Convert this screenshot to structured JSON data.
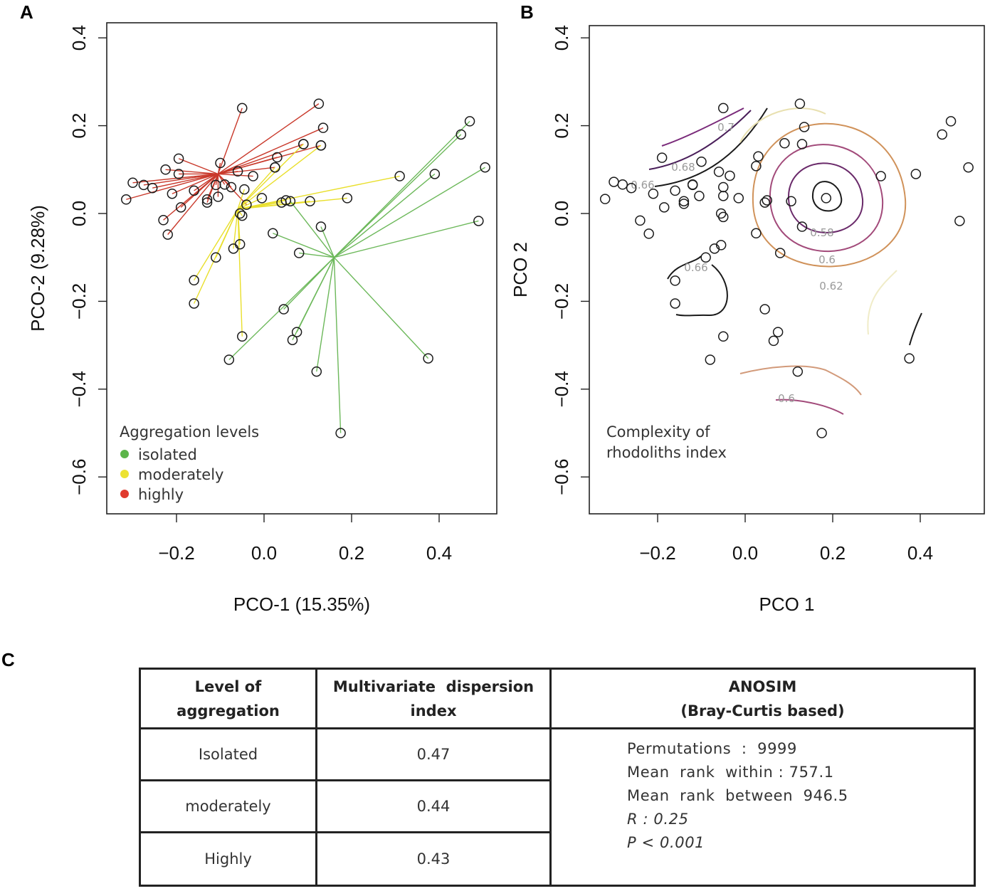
{
  "chart_data": [
    {
      "panel": "A",
      "type": "scatter",
      "xlabel": "PCO-1 (15.35%)",
      "ylabel": "PCO-2 (9.28%)",
      "xlim": [
        -0.35,
        0.53
      ],
      "ylim": [
        -0.68,
        0.43
      ],
      "xticks": [
        "-0.2",
        "0.0",
        "0.2",
        "0.4"
      ],
      "yticks": [
        "-0.6",
        "-0.4",
        "-0.2",
        "0.0",
        "0.2",
        "0.4"
      ],
      "legend": {
        "title": "Aggregation levels",
        "position": "bottom-left",
        "entries": [
          {
            "label": "isolated",
            "color": "#5cb54a"
          },
          {
            "label": "moderately",
            "color": "#ece232"
          },
          {
            "label": "highly",
            "color": "#e03a2e"
          }
        ]
      },
      "groups": [
        {
          "name": "highly",
          "color": "#c9392b",
          "centroid": [
            -0.105,
            0.09
          ],
          "points": [
            [
              -0.05,
              0.24
            ],
            [
              0.125,
              0.25
            ],
            [
              0.135,
              0.195
            ],
            [
              0.13,
              0.155
            ],
            [
              0.09,
              0.158
            ],
            [
              0.03,
              0.128
            ],
            [
              0.025,
              0.105
            ],
            [
              -0.1,
              0.115
            ],
            [
              -0.195,
              0.125
            ],
            [
              -0.225,
              0.1
            ],
            [
              -0.195,
              0.09
            ],
            [
              -0.315,
              0.032
            ],
            [
              -0.3,
              0.07
            ],
            [
              -0.275,
              0.065
            ],
            [
              -0.255,
              0.058
            ],
            [
              -0.23,
              -0.015
            ],
            [
              -0.19,
              0.014
            ],
            [
              -0.22,
              -0.048
            ],
            [
              -0.21,
              0.045
            ],
            [
              -0.16,
              0.052
            ],
            [
              -0.13,
              0.025
            ],
            [
              -0.13,
              0.032
            ],
            [
              -0.06,
              0.096
            ],
            [
              -0.025,
              0.085
            ],
            [
              -0.04,
              0.02
            ],
            [
              -0.11,
              0.065
            ],
            [
              -0.105,
              0.038
            ],
            [
              -0.09,
              0.066
            ],
            [
              -0.075,
              0.06
            ]
          ]
        },
        {
          "name": "moderately",
          "color": "#e9df2c",
          "centroid": [
            -0.06,
            0.01
          ],
          "points": [
            [
              0.31,
              0.085
            ],
            [
              0.19,
              0.035
            ],
            [
              0.105,
              0.028
            ],
            [
              0.05,
              0.03
            ],
            [
              0.04,
              0.025
            ],
            [
              0.025,
              0.105
            ],
            [
              -0.005,
              0.035
            ],
            [
              -0.045,
              0.055
            ],
            [
              -0.055,
              0.0
            ],
            [
              -0.05,
              -0.005
            ],
            [
              -0.07,
              -0.08
            ],
            [
              -0.055,
              -0.07
            ],
            [
              -0.11,
              -0.1
            ],
            [
              -0.16,
              -0.152
            ],
            [
              -0.16,
              -0.205
            ],
            [
              -0.05,
              -0.28
            ],
            [
              0.13,
              0.155
            ],
            [
              0.09,
              0.158
            ]
          ]
        },
        {
          "name": "isolated",
          "color": "#6cb85a",
          "centroid": [
            0.16,
            -0.1
          ],
          "points": [
            [
              0.47,
              0.21
            ],
            [
              0.45,
              0.18
            ],
            [
              0.505,
              0.105
            ],
            [
              0.39,
              0.09
            ],
            [
              0.49,
              -0.017
            ],
            [
              0.375,
              -0.33
            ],
            [
              0.175,
              -0.5
            ],
            [
              0.12,
              -0.36
            ],
            [
              0.075,
              -0.27
            ],
            [
              0.065,
              -0.288
            ],
            [
              0.045,
              -0.218
            ],
            [
              -0.08,
              -0.333
            ],
            [
              0.08,
              -0.09
            ],
            [
              0.13,
              -0.03
            ],
            [
              0.02,
              -0.045
            ],
            [
              0.06,
              0.028
            ]
          ]
        }
      ]
    },
    {
      "panel": "B",
      "type": "scatter",
      "xlabel": "PCO 1",
      "ylabel": "PCO 2",
      "xlim": [
        -0.35,
        0.53
      ],
      "ylim": [
        -0.68,
        0.43
      ],
      "xticks": [
        "-0.2",
        "0.0",
        "0.2",
        "0.4"
      ],
      "yticks": [
        "-0.6",
        "-0.4",
        "-0.2",
        "0.0",
        "0.2",
        "0.4"
      ],
      "annotation": [
        "Complexity of",
        "rhodoliths index"
      ],
      "contour_levels": [
        "0.7",
        "0.68",
        "0.66",
        "0.58",
        "0.6",
        "0.62",
        "0.66",
        "0.6"
      ],
      "points": [
        [
          -0.32,
          0.033
        ],
        [
          -0.3,
          0.072
        ],
        [
          -0.28,
          0.066
        ],
        [
          -0.26,
          0.058
        ],
        [
          -0.24,
          -0.016
        ],
        [
          -0.22,
          -0.046
        ],
        [
          -0.21,
          0.045
        ],
        [
          -0.19,
          0.127
        ],
        [
          -0.185,
          0.014
        ],
        [
          -0.16,
          0.052
        ],
        [
          -0.14,
          0.028
        ],
        [
          -0.14,
          0.022
        ],
        [
          -0.12,
          0.065
        ],
        [
          -0.105,
          0.04
        ],
        [
          -0.1,
          0.118
        ],
        [
          -0.09,
          -0.1
        ],
        [
          -0.05,
          0.24
        ],
        [
          -0.06,
          0.095
        ],
        [
          -0.05,
          0.06
        ],
        [
          -0.05,
          0.04
        ],
        [
          -0.055,
          0.0
        ],
        [
          -0.05,
          -0.008
        ],
        [
          -0.07,
          -0.08
        ],
        [
          -0.055,
          -0.072
        ],
        [
          -0.015,
          0.035
        ],
        [
          -0.035,
          0.086
        ],
        [
          -0.12,
          0.066
        ],
        [
          0.025,
          0.108
        ],
        [
          0.025,
          -0.045
        ],
        [
          0.03,
          0.13
        ],
        [
          0.045,
          0.025
        ],
        [
          0.05,
          0.03
        ],
        [
          0.09,
          0.16
        ],
        [
          0.08,
          -0.09
        ],
        [
          0.105,
          0.028
        ],
        [
          0.125,
          0.25
        ],
        [
          0.135,
          0.197
        ],
        [
          0.13,
          0.158
        ],
        [
          0.13,
          -0.03
        ],
        [
          0.185,
          0.035
        ],
        [
          0.31,
          0.085
        ],
        [
          0.39,
          0.09
        ],
        [
          0.45,
          0.18
        ],
        [
          0.47,
          0.21
        ],
        [
          0.51,
          0.105
        ],
        [
          0.49,
          -0.017
        ],
        [
          0.375,
          -0.33
        ],
        [
          0.175,
          -0.5
        ],
        [
          0.12,
          -0.36
        ],
        [
          0.065,
          -0.29
        ],
        [
          0.075,
          -0.27
        ],
        [
          0.045,
          -0.218
        ],
        [
          -0.05,
          -0.28
        ],
        [
          -0.08,
          -0.333
        ],
        [
          -0.16,
          -0.153
        ],
        [
          -0.16,
          -0.205
        ]
      ]
    }
  ],
  "figure": {
    "panel_a_letter": "A",
    "panel_b_letter": "B",
    "panel_c_letter": "C"
  },
  "table": {
    "headers": {
      "level_line1": "Level of",
      "level_line2": "aggregation",
      "disp_line1": "Multivariate  dispersion",
      "disp_line2": "index",
      "anosim_line1": "ANOSIM",
      "anosim_line2": "(Bray-Curtis based)"
    },
    "rows": [
      {
        "level": "Isolated",
        "value": "0.47"
      },
      {
        "level": "moderately",
        "value": "0.44"
      },
      {
        "level": "Highly",
        "value": "0.43"
      }
    ],
    "anosim": {
      "permutations": "Permutations  :  9999",
      "rank_within": "Mean  rank  within : 757.1",
      "rank_between": "Mean  rank  between  946.5",
      "r_value": "R : 0.25",
      "p_value": "P < 0.001"
    }
  }
}
